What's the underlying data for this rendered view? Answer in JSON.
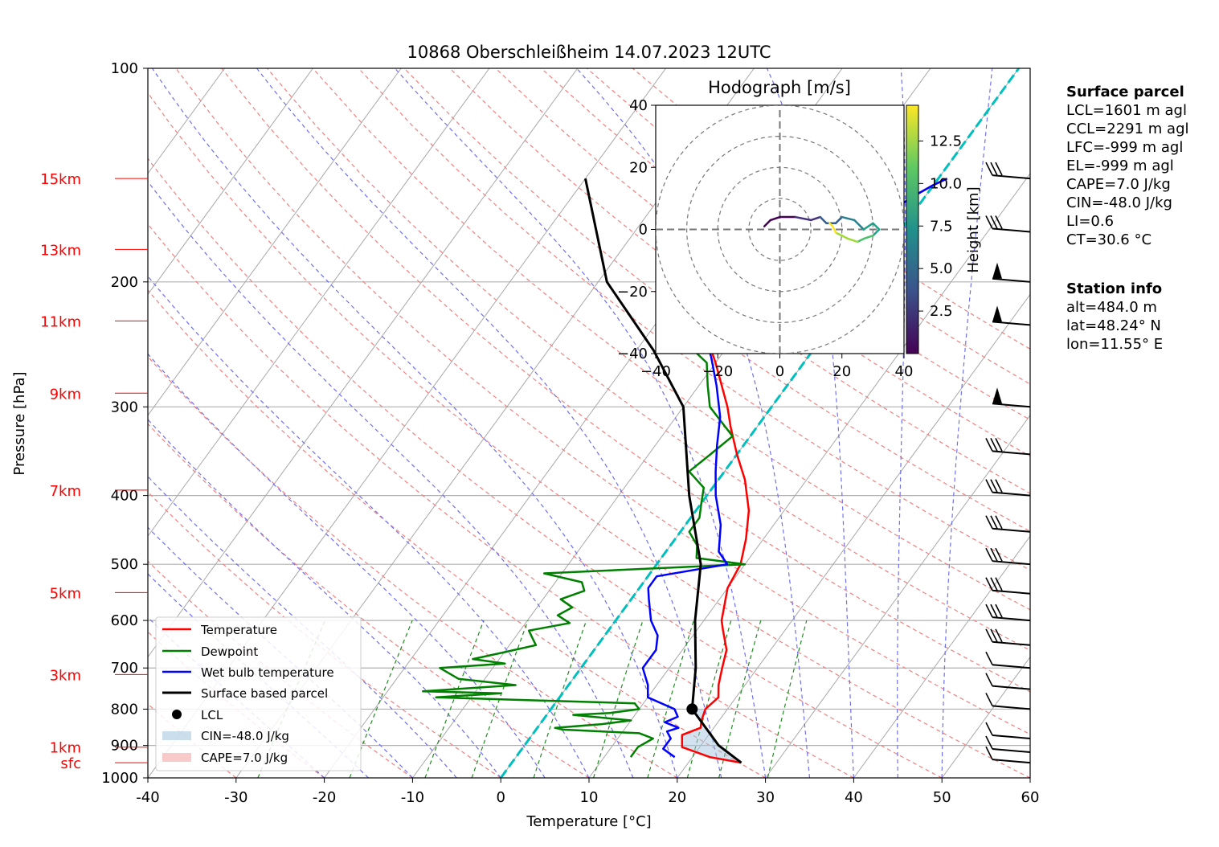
{
  "chart_data": {
    "type": "line",
    "title": "10868 Oberschleißheim 14.07.2023 12UTC",
    "xlabel": "Temperature [°C]",
    "ylabel": "Pressure [hPa]",
    "xlim": [
      -40,
      60
    ],
    "ylim": [
      1000,
      100
    ],
    "yscale": "log",
    "grid": true,
    "xticks": [
      -40,
      -30,
      -20,
      -10,
      0,
      10,
      20,
      30,
      40,
      50,
      60
    ],
    "yticks": [
      100,
      200,
      300,
      400,
      500,
      600,
      700,
      800,
      900,
      1000
    ],
    "height_labels": [
      {
        "label": "15km",
        "p": 143
      },
      {
        "label": "13km",
        "p": 180
      },
      {
        "label": "11km",
        "p": 227
      },
      {
        "label": "9km",
        "p": 287
      },
      {
        "label": "7km",
        "p": 393
      },
      {
        "label": "5km",
        "p": 548
      },
      {
        "label": "3km",
        "p": 715
      },
      {
        "label": "1km",
        "p": 905
      },
      {
        "label": "sfc",
        "p": 952
      }
    ],
    "series": [
      {
        "name": "Temperature",
        "color": "#ff0000",
        "points": [
          [
            26,
            952
          ],
          [
            22,
            935
          ],
          [
            18,
            905
          ],
          [
            17,
            870
          ],
          [
            18.5,
            850
          ],
          [
            18,
            830
          ],
          [
            17.5,
            800
          ],
          [
            18,
            770
          ],
          [
            17,
            740
          ],
          [
            16,
            700
          ],
          [
            15,
            660
          ],
          [
            13,
            620
          ],
          [
            12,
            600
          ],
          [
            10,
            540
          ],
          [
            9.5,
            500
          ],
          [
            8,
            460
          ],
          [
            6,
            420
          ],
          [
            3,
            380
          ],
          [
            0,
            350
          ],
          [
            -3,
            320
          ],
          [
            -5,
            300
          ],
          [
            -10,
            260
          ],
          [
            -13,
            240
          ],
          [
            -17,
            210
          ],
          [
            -17,
            195
          ],
          [
            -15,
            185
          ],
          [
            -12,
            178
          ],
          [
            -8,
            172
          ],
          [
            -6,
            167
          ],
          [
            -3,
            162
          ],
          [
            -2,
            155
          ],
          [
            -1,
            150
          ],
          [
            0,
            146
          ],
          [
            1,
            143
          ]
        ]
      },
      {
        "name": "Dewpoint",
        "color": "#008000",
        "points": [
          [
            13,
            935
          ],
          [
            13,
            905
          ],
          [
            14,
            880
          ],
          [
            12,
            865
          ],
          [
            3,
            855
          ],
          [
            2,
            850
          ],
          [
            7,
            840
          ],
          [
            10,
            830
          ],
          [
            3,
            815
          ],
          [
            7,
            810
          ],
          [
            10,
            800
          ],
          [
            9,
            785
          ],
          [
            -14,
            770
          ],
          [
            -7,
            760
          ],
          [
            -16,
            755
          ],
          [
            -6,
            740
          ],
          [
            -13,
            725
          ],
          [
            -16,
            700
          ],
          [
            -9,
            690
          ],
          [
            -13,
            680
          ],
          [
            -10,
            665
          ],
          [
            -7,
            650
          ],
          [
            -8,
            635
          ],
          [
            -9,
            620
          ],
          [
            -5,
            605
          ],
          [
            -7,
            590
          ],
          [
            -6,
            575
          ],
          [
            -8,
            560
          ],
          [
            -6,
            545
          ],
          [
            -7,
            530
          ],
          [
            -12,
            515
          ],
          [
            10,
            500
          ],
          [
            4,
            490
          ],
          [
            3,
            470
          ],
          [
            1,
            450
          ],
          [
            1,
            430
          ],
          [
            0,
            410
          ],
          [
            -1,
            390
          ],
          [
            -4,
            370
          ],
          [
            -3,
            350
          ],
          [
            -2,
            330
          ],
          [
            -7,
            300
          ],
          [
            -9,
            280
          ],
          [
            -11,
            260
          ],
          [
            -16,
            240
          ],
          [
            -18,
            220
          ],
          [
            -15,
            210
          ],
          [
            -21,
            200
          ],
          [
            -18,
            190
          ],
          [
            -24,
            180
          ],
          [
            -27,
            170
          ],
          [
            -27,
            160
          ],
          [
            -28,
            153
          ],
          [
            -24,
            150
          ],
          [
            -23,
            147
          ],
          [
            -23,
            143
          ]
        ]
      },
      {
        "name": "Wet bulb temperature",
        "color": "#0000ff",
        "points": [
          [
            18,
            935
          ],
          [
            16,
            910
          ],
          [
            16,
            880
          ],
          [
            15,
            860
          ],
          [
            16,
            850
          ],
          [
            14,
            835
          ],
          [
            15,
            820
          ],
          [
            14,
            800
          ],
          [
            10,
            770
          ],
          [
            9,
            740
          ],
          [
            7,
            700
          ],
          [
            7,
            660
          ],
          [
            6,
            630
          ],
          [
            4,
            600
          ],
          [
            2,
            560
          ],
          [
            1,
            540
          ],
          [
            1,
            520
          ],
          [
            8,
            500
          ],
          [
            6,
            480
          ],
          [
            4,
            440
          ],
          [
            1,
            400
          ],
          [
            -1,
            370
          ],
          [
            -3,
            340
          ],
          [
            -5,
            310
          ],
          [
            -8,
            280
          ],
          [
            -11,
            255
          ],
          [
            -14,
            235
          ],
          [
            -17,
            215
          ],
          [
            -17,
            200
          ],
          [
            -14,
            185
          ],
          [
            -10,
            175
          ],
          [
            -6,
            168
          ],
          [
            -3,
            162
          ],
          [
            -2,
            155
          ],
          [
            -1,
            150
          ],
          [
            0,
            146
          ],
          [
            1,
            143
          ]
        ]
      },
      {
        "name": "Surface based parcel",
        "color": "#000000",
        "points": [
          [
            26,
            952
          ],
          [
            22,
            900
          ],
          [
            16,
            800
          ],
          [
            13,
            700
          ],
          [
            9,
            600
          ],
          [
            5,
            500
          ],
          [
            -2,
            400
          ],
          [
            -10,
            300
          ],
          [
            -18,
            250
          ],
          [
            -29,
            200
          ],
          [
            -40,
            143
          ]
        ]
      }
    ],
    "lcl": {
      "name": "LCL",
      "t": 16,
      "p": 800
    },
    "legend": [
      "Temperature",
      "Dewpoint",
      "Wet bulb temperature",
      "Surface based parcel",
      "LCL",
      "CIN=-48.0 J/kg",
      "CAPE=7.0 J/kg"
    ],
    "legend_position": "lower-left",
    "hodograph": {
      "title": "Hodograph [m/s]",
      "xlim": [
        -40,
        40
      ],
      "ylim": [
        -40,
        40
      ],
      "ticks": [
        -40,
        -20,
        0,
        20,
        40
      ],
      "rings": [
        10,
        20,
        30,
        40
      ],
      "colorbar_label": "Height [km]",
      "colorbar_ticks": [
        2.5,
        5.0,
        7.5,
        10.0,
        12.5
      ],
      "uv": [
        [
          -5,
          1
        ],
        [
          -3,
          3
        ],
        [
          0,
          4
        ],
        [
          5,
          4
        ],
        [
          10,
          3
        ],
        [
          13,
          4
        ],
        [
          15,
          2
        ],
        [
          18,
          2
        ],
        [
          20,
          4
        ],
        [
          24,
          3
        ],
        [
          27,
          0
        ],
        [
          30,
          2
        ],
        [
          32,
          0
        ],
        [
          30,
          -2
        ],
        [
          27,
          -3
        ],
        [
          25,
          -4
        ],
        [
          22,
          -3
        ],
        [
          20,
          -2
        ],
        [
          18,
          -1
        ],
        [
          17,
          1
        ],
        [
          16,
          2
        ]
      ]
    }
  },
  "surface_parcel": {
    "title": "Surface parcel",
    "lines": [
      "LCL=1601 m agl",
      "CCL=2291 m agl",
      "LFC=-999 m agl",
      "EL=-999 m agl",
      "CAPE=7.0 J/kg",
      "CIN=-48.0 J/kg",
      "LI=0.6",
      "CT=30.6 °C"
    ]
  },
  "station_info": {
    "title": "Station info",
    "lines": [
      "alt=484.0 m",
      "lat=48.24° N",
      "lon=11.55° E"
    ]
  }
}
